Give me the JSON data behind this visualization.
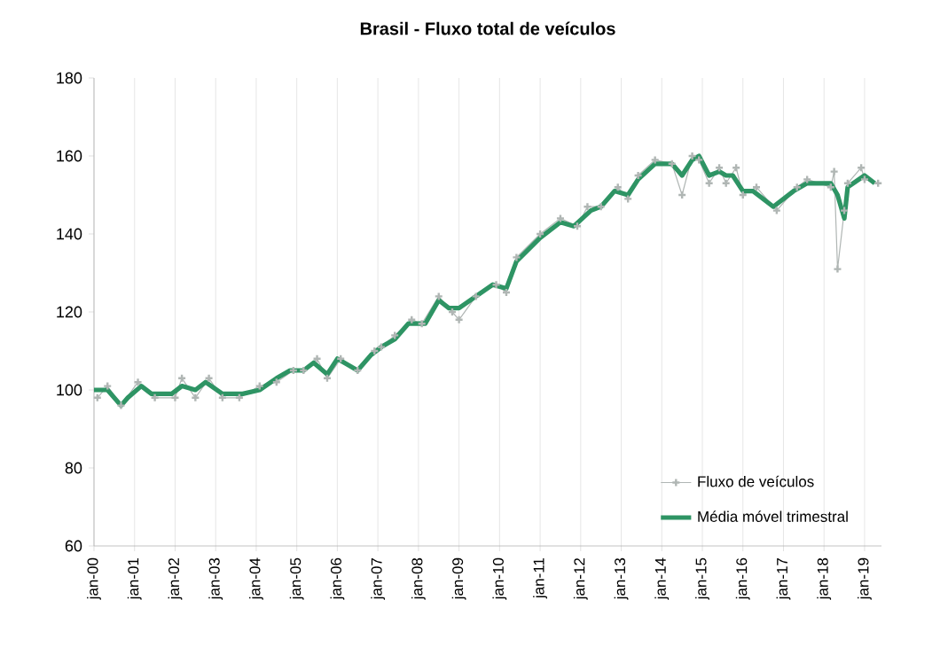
{
  "chart_data": {
    "type": "line",
    "title": "Brasil - Fluxo total de veículos",
    "xlim": [
      "2000-01",
      "2019-06"
    ],
    "ylim": [
      60,
      180
    ],
    "xticks": [
      {
        "value": "2000-01",
        "label": "jan-00"
      },
      {
        "value": "2001-01",
        "label": "jan-01"
      },
      {
        "value": "2002-01",
        "label": "jan-02"
      },
      {
        "value": "2003-01",
        "label": "jan-03"
      },
      {
        "value": "2004-01",
        "label": "jan-04"
      },
      {
        "value": "2005-01",
        "label": "jan-05"
      },
      {
        "value": "2006-01",
        "label": "jan-06"
      },
      {
        "value": "2007-01",
        "label": "jan-07"
      },
      {
        "value": "2008-01",
        "label": "jan-08"
      },
      {
        "value": "2009-01",
        "label": "jan-09"
      },
      {
        "value": "2010-01",
        "label": "jan-10"
      },
      {
        "value": "2011-01",
        "label": "jan-11"
      },
      {
        "value": "2012-01",
        "label": "jan-12"
      },
      {
        "value": "2013-01",
        "label": "jan-13"
      },
      {
        "value": "2014-01",
        "label": "jan-14"
      },
      {
        "value": "2015-01",
        "label": "jan-15"
      },
      {
        "value": "2016-01",
        "label": "jan-16"
      },
      {
        "value": "2017-01",
        "label": "jan-17"
      },
      {
        "value": "2018-01",
        "label": "jan-18"
      },
      {
        "value": "2019-01",
        "label": "jan-19"
      }
    ],
    "yticks": [
      60,
      80,
      100,
      120,
      140,
      160,
      180
    ],
    "grid": "x",
    "legend": "bottom right",
    "series": [
      {
        "name": "Fluxo de veículos",
        "color": "#b0b6b4",
        "marker": "cross",
        "x": [
          "2000-02",
          "2000-05",
          "2000-09",
          "2001-02",
          "2001-07",
          "2002-01",
          "2002-03",
          "2002-07",
          "2002-11",
          "2003-03",
          "2003-08",
          "2004-02",
          "2004-07",
          "2004-12",
          "2005-03",
          "2005-07",
          "2005-10",
          "2006-02",
          "2006-07",
          "2006-12",
          "2007-02",
          "2007-06",
          "2007-11",
          "2008-02",
          "2008-07",
          "2008-11",
          "2009-01",
          "2009-06",
          "2009-12",
          "2010-03",
          "2010-06",
          "2011-01",
          "2011-07",
          "2011-12",
          "2012-03",
          "2012-07",
          "2012-12",
          "2013-03",
          "2013-06",
          "2013-11",
          "2014-04",
          "2014-07",
          "2014-10",
          "2014-12",
          "2015-03",
          "2015-06",
          "2015-08",
          "2015-11",
          "2016-01",
          "2016-05",
          "2016-11",
          "2017-05",
          "2017-08",
          "2018-03",
          "2018-04",
          "2018-05",
          "2018-07",
          "2018-08",
          "2018-12",
          "2019-01",
          "2019-05"
        ],
        "values": [
          98,
          101,
          96,
          102,
          98,
          98,
          103,
          98,
          103,
          98,
          98,
          101,
          102,
          105,
          105,
          108,
          103,
          108,
          105,
          110,
          111,
          114,
          118,
          117,
          124,
          120,
          118,
          124,
          127,
          125,
          134,
          140,
          144,
          142,
          147,
          147,
          152,
          149,
          155,
          159,
          158,
          150,
          160,
          159,
          153,
          157,
          153,
          157,
          150,
          152,
          146,
          152,
          154,
          152,
          156,
          131,
          146,
          153,
          157,
          154,
          153
        ]
      },
      {
        "name": "Média móvel trimestral",
        "color": "#2e9464",
        "marker": "none",
        "x": [
          "2000-01",
          "2000-05",
          "2000-09",
          "2000-11",
          "2001-03",
          "2001-06",
          "2001-12",
          "2002-03",
          "2002-07",
          "2002-10",
          "2003-03",
          "2003-09",
          "2004-02",
          "2004-07",
          "2004-11",
          "2005-03",
          "2005-06",
          "2005-10",
          "2006-01",
          "2006-07",
          "2006-11",
          "2007-02",
          "2007-06",
          "2007-10",
          "2008-03",
          "2008-07",
          "2008-10",
          "2009-01",
          "2009-06",
          "2009-11",
          "2010-03",
          "2010-06",
          "2011-01",
          "2011-07",
          "2011-11",
          "2012-04",
          "2012-07",
          "2012-11",
          "2013-03",
          "2013-06",
          "2013-11",
          "2014-04",
          "2014-07",
          "2014-10",
          "2014-12",
          "2015-03",
          "2015-06",
          "2015-08",
          "2015-10",
          "2016-01",
          "2016-04",
          "2016-10",
          "2017-04",
          "2017-08",
          "2018-03",
          "2018-05",
          "2018-07",
          "2018-08",
          "2019-01",
          "2019-04"
        ],
        "values": [
          100,
          100,
          96,
          98,
          101,
          99,
          99,
          101,
          100,
          102,
          99,
          99,
          100,
          103,
          105,
          105,
          107,
          104,
          108,
          105,
          109,
          111,
          113,
          117,
          117,
          123,
          121,
          121,
          124,
          127,
          126,
          133,
          139,
          143,
          142,
          146,
          147,
          151,
          150,
          154,
          158,
          158,
          155,
          159,
          160,
          155,
          156,
          155,
          155,
          151,
          151,
          147,
          151,
          153,
          153,
          150,
          144,
          152,
          155,
          153
        ]
      }
    ]
  }
}
